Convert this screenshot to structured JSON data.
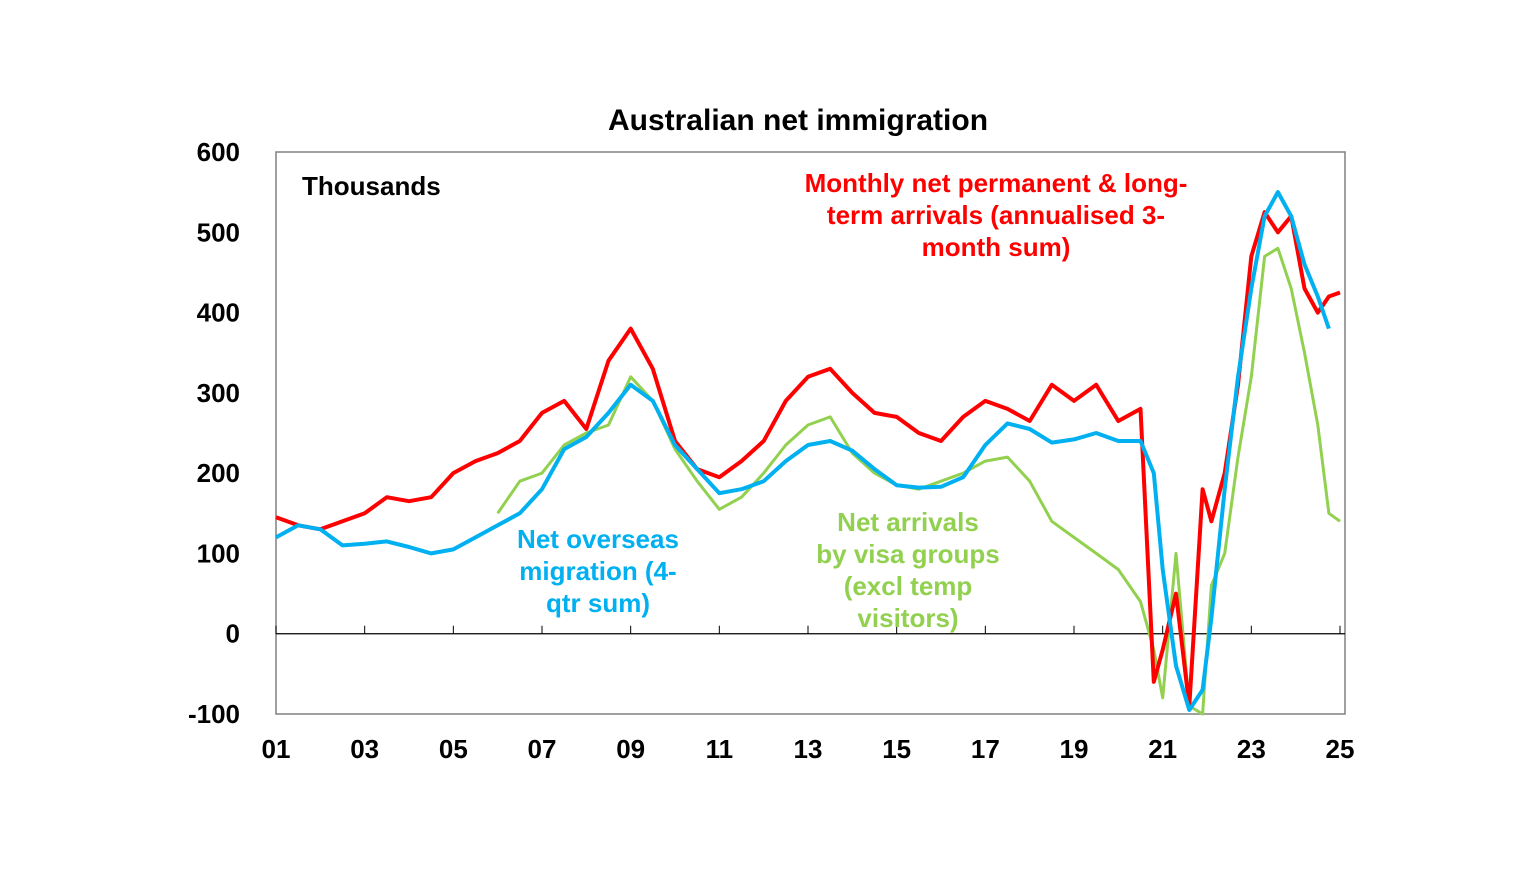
{
  "chart_data": {
    "type": "line",
    "title": "Australian net immigration",
    "unit_label": "Thousands",
    "ylim": [
      -100,
      600
    ],
    "xlim": [
      2001,
      2025
    ],
    "y_ticks": [
      "600",
      "500",
      "400",
      "300",
      "200",
      "100",
      "0",
      "-100"
    ],
    "x_ticks": [
      "01",
      "03",
      "05",
      "07",
      "09",
      "11",
      "13",
      "15",
      "17",
      "19",
      "21",
      "23",
      "25"
    ],
    "grid": false,
    "annotations": {
      "red": [
        "Monthly net permanent & long-",
        "term arrivals (annualised 3-",
        "month sum)"
      ],
      "blue": [
        "Net overseas",
        "migration (4-",
        "qtr sum)"
      ],
      "green": [
        "Net arrivals",
        "by visa groups",
        "(excl temp",
        "visitors)"
      ]
    },
    "series": [
      {
        "color": "#ff0000",
        "x": [
          2001.0,
          2001.5,
          2002.0,
          2002.5,
          2003.0,
          2003.5,
          2004.0,
          2004.5,
          2005.0,
          2005.5,
          2006.0,
          2006.5,
          2007.0,
          2007.5,
          2008.0,
          2008.5,
          2009.0,
          2009.5,
          2010.0,
          2010.5,
          2011.0,
          2011.5,
          2012.0,
          2012.5,
          2013.0,
          2013.5,
          2014.0,
          2014.5,
          2015.0,
          2015.5,
          2016.0,
          2016.5,
          2017.0,
          2017.5,
          2018.0,
          2018.5,
          2019.0,
          2019.5,
          2020.0,
          2020.5,
          2020.8,
          2021.0,
          2021.3,
          2021.6,
          2021.9,
          2022.1,
          2022.4,
          2022.7,
          2023.0,
          2023.3,
          2023.6,
          2023.9,
          2024.2,
          2024.5,
          2024.75,
          2025.0
        ],
        "y": [
          145,
          135,
          130,
          140,
          150,
          170,
          165,
          170,
          200,
          215,
          225,
          240,
          275,
          290,
          255,
          340,
          380,
          330,
          240,
          205,
          195,
          215,
          240,
          290,
          320,
          330,
          300,
          275,
          270,
          250,
          240,
          270,
          290,
          280,
          265,
          310,
          290,
          310,
          265,
          280,
          -60,
          -20,
          50,
          -90,
          180,
          140,
          200,
          310,
          470,
          525,
          500,
          520,
          430,
          400,
          420,
          425
        ]
      },
      {
        "color": "#00b0f0",
        "x": [
          2001.0,
          2001.5,
          2002.0,
          2002.5,
          2003.0,
          2003.5,
          2004.0,
          2004.5,
          2005.0,
          2005.5,
          2006.0,
          2006.5,
          2007.0,
          2007.5,
          2008.0,
          2008.5,
          2009.0,
          2009.5,
          2010.0,
          2010.5,
          2011.0,
          2011.5,
          2012.0,
          2012.5,
          2013.0,
          2013.5,
          2014.0,
          2014.5,
          2015.0,
          2015.5,
          2016.0,
          2016.5,
          2017.0,
          2017.5,
          2018.0,
          2018.5,
          2019.0,
          2019.5,
          2020.0,
          2020.5,
          2020.8,
          2021.0,
          2021.3,
          2021.6,
          2021.9,
          2022.1,
          2022.4,
          2022.7,
          2023.0,
          2023.3,
          2023.6,
          2023.9,
          2024.2,
          2024.5,
          2024.75
        ],
        "y": [
          120,
          135,
          130,
          110,
          112,
          115,
          108,
          100,
          105,
          120,
          135,
          150,
          180,
          230,
          245,
          275,
          310,
          290,
          235,
          205,
          175,
          180,
          190,
          215,
          235,
          240,
          228,
          205,
          185,
          182,
          183,
          195,
          235,
          262,
          255,
          238,
          242,
          250,
          240,
          240,
          200,
          80,
          -40,
          -95,
          -70,
          20,
          180,
          320,
          430,
          520,
          550,
          520,
          460,
          420,
          380
        ]
      },
      {
        "color": "#92d050",
        "x": [
          2006.0,
          2006.5,
          2007.0,
          2007.5,
          2008.0,
          2008.5,
          2009.0,
          2009.5,
          2010.0,
          2010.5,
          2011.0,
          2011.5,
          2012.0,
          2012.5,
          2013.0,
          2013.5,
          2014.0,
          2014.5,
          2015.0,
          2015.5,
          2016.0,
          2016.5,
          2017.0,
          2017.5,
          2018.0,
          2018.5,
          2019.0,
          2019.5,
          2020.0,
          2020.5,
          2020.8,
          2021.0,
          2021.3,
          2021.6,
          2021.9,
          2022.1,
          2022.4,
          2022.7,
          2023.0,
          2023.3,
          2023.6,
          2023.9,
          2024.2,
          2024.5,
          2024.75,
          2025.0
        ],
        "y": [
          150,
          190,
          200,
          235,
          250,
          260,
          320,
          290,
          230,
          190,
          155,
          170,
          200,
          235,
          260,
          270,
          225,
          200,
          185,
          180,
          190,
          200,
          215,
          220,
          190,
          140,
          120,
          100,
          80,
          40,
          -20,
          -80,
          100,
          -90,
          -100,
          60,
          100,
          220,
          320,
          470,
          480,
          430,
          350,
          260,
          150,
          140
        ]
      }
    ]
  }
}
